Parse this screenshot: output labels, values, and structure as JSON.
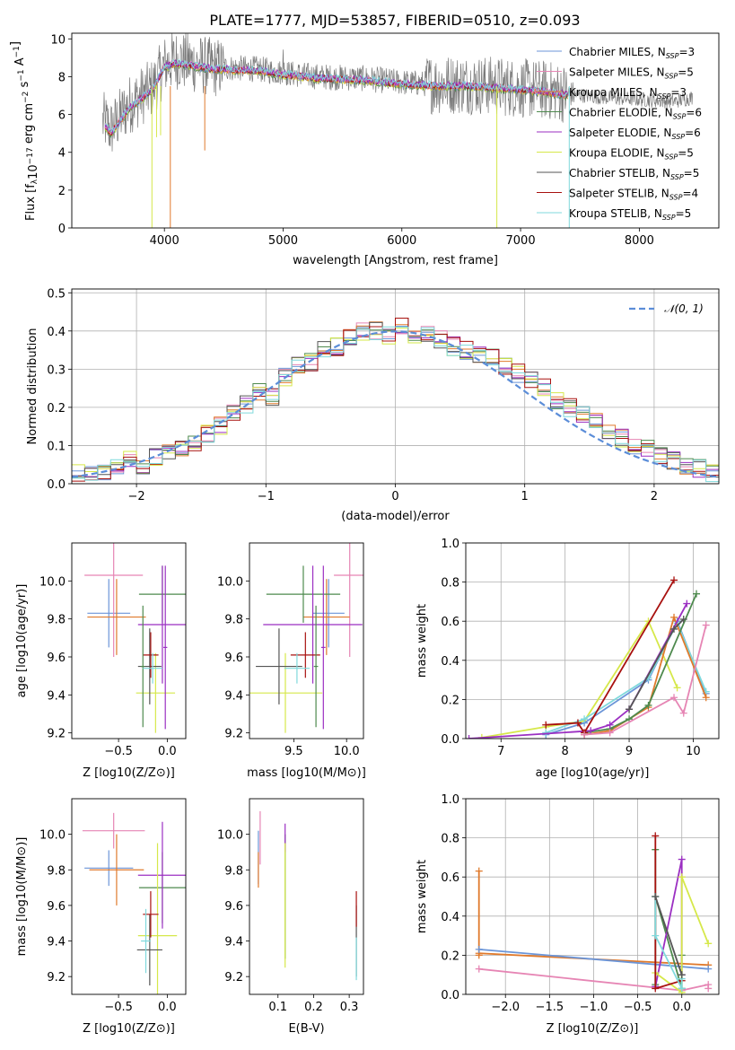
{
  "title": "PLATE=1777, MJD=53857, FIBERID=0510, z=0.093",
  "series": [
    {
      "name": "Chabrier MILES, N_SSP=3",
      "color": "#6b95d8",
      "lib": "MILES",
      "imf": "Chabrier",
      "nssp": "3"
    },
    {
      "name": "Salpeter MILES, N_SSP=5",
      "color": "#e685b4",
      "lib": "MILES",
      "imf": "Salpeter",
      "nssp": "5"
    },
    {
      "name": "Kroupa MILES, N_SSP=3",
      "color": "#e07a2c",
      "lib": "MILES",
      "imf": "Kroupa",
      "nssp": "3"
    },
    {
      "name": "Chabrier ELODIE, N_SSP=6",
      "color": "#4e8a4e",
      "lib": "ELODIE",
      "imf": "Chabrier",
      "nssp": "6"
    },
    {
      "name": "Salpeter ELODIE, N_SSP=6",
      "color": "#9b2fc2",
      "lib": "ELODIE",
      "imf": "Salpeter",
      "nssp": "6"
    },
    {
      "name": "Kroupa ELODIE, N_SSP=5",
      "color": "#d6e84a",
      "lib": "ELODIE",
      "imf": "Kroupa",
      "nssp": "5"
    },
    {
      "name": "Chabrier STELIB, N_SSP=5",
      "color": "#555555",
      "lib": "STELIB",
      "imf": "Chabrier",
      "nssp": "5"
    },
    {
      "name": "Salpeter STELIB, N_SSP=4",
      "color": "#a8110f",
      "lib": "STELIB",
      "imf": "Salpeter",
      "nssp": "4"
    },
    {
      "name": "Kroupa STELIB, N_SSP=5",
      "color": "#7fd9dc",
      "lib": "STELIB",
      "imf": "Kroupa",
      "nssp": "5"
    }
  ],
  "chart_data": [
    {
      "id": "spectrum",
      "type": "line",
      "title": "PLATE=1777, MJD=53857, FIBERID=0510, z=0.093",
      "xlabel": "wavelength [Angstrom, rest frame]",
      "ylabel": "Flux [f_λ 10^-17 erg cm^-2 s^-1 A^-1]",
      "xlim": [
        3220,
        8670
      ],
      "ylim": [
        0,
        10.3
      ],
      "xticks": [
        4000,
        5000,
        6000,
        7000,
        8000
      ],
      "yticks": [
        0,
        2,
        4,
        6,
        8,
        10
      ],
      "data_continuum": {
        "x": [
          3500,
          3550,
          3700,
          3900,
          4000,
          4100,
          4400,
          4800,
          5000,
          5300,
          5700,
          6000,
          6300,
          6560,
          6800,
          7200,
          7400,
          7700,
          8000,
          8300,
          8450
        ],
        "y": [
          5.6,
          5.2,
          6.5,
          7.4,
          8.6,
          8.9,
          8.5,
          8.4,
          8.2,
          8.0,
          7.9,
          7.7,
          7.6,
          7.6,
          7.5,
          7.3,
          7.1,
          6.9,
          6.8,
          6.7,
          6.9
        ]
      },
      "model_continuum": {
        "x": [
          3500,
          3550,
          3700,
          3900,
          4000,
          4100,
          4400,
          4800,
          5000,
          5300,
          5700,
          6000,
          6300,
          6560,
          6800,
          7200,
          7400
        ],
        "y": [
          5.4,
          5.0,
          6.3,
          7.3,
          8.5,
          8.7,
          8.4,
          8.3,
          8.1,
          7.9,
          7.8,
          7.6,
          7.5,
          7.5,
          7.4,
          7.2,
          7.0
        ]
      },
      "legend_position": "right"
    },
    {
      "id": "residuals",
      "type": "line",
      "xlabel": "(data-model)/error",
      "ylabel": "Normed distribution",
      "xlim": [
        -2.5,
        2.5
      ],
      "ylim": [
        0,
        0.51
      ],
      "xticks": [
        -2,
        -1,
        0,
        1,
        2
      ],
      "yticks": [
        0.0,
        0.1,
        0.2,
        0.3,
        0.4,
        0.5
      ],
      "grid": true,
      "gaussian_label": "𝒩(0, 1)",
      "legend_position": "top-right",
      "hist_edges": [
        -2.5,
        -2.4,
        -2.3,
        -2.2,
        -2.1,
        -2.0,
        -1.9,
        -1.8,
        -1.7,
        -1.6,
        -1.5,
        -1.4,
        -1.3,
        -1.2,
        -1.1,
        -1.0,
        -0.9,
        -0.8,
        -0.7,
        -0.6,
        -0.5,
        -0.4,
        -0.3,
        -0.2,
        -0.1,
        0.0,
        0.1,
        0.2,
        0.3,
        0.4,
        0.5,
        0.6,
        0.7,
        0.8,
        0.9,
        1.0,
        1.1,
        1.2,
        1.3,
        1.4,
        1.5,
        1.6,
        1.7,
        1.8,
        1.9,
        2.0,
        2.1,
        2.2,
        2.3,
        2.4,
        2.5
      ],
      "hist_base": [
        0.03,
        0.02,
        0.03,
        0.04,
        0.06,
        0.05,
        0.07,
        0.08,
        0.09,
        0.11,
        0.13,
        0.15,
        0.19,
        0.21,
        0.24,
        0.23,
        0.28,
        0.31,
        0.32,
        0.35,
        0.36,
        0.38,
        0.4,
        0.4,
        0.39,
        0.41,
        0.38,
        0.39,
        0.38,
        0.36,
        0.35,
        0.34,
        0.33,
        0.31,
        0.29,
        0.27,
        0.25,
        0.22,
        0.2,
        0.18,
        0.16,
        0.14,
        0.12,
        0.1,
        0.09,
        0.07,
        0.06,
        0.05,
        0.04,
        0.03
      ]
    },
    {
      "id": "age-vs-Z",
      "type": "scatter",
      "xlabel": "Z [log10(Z/Z⊙)]",
      "ylabel": "age  [log10(age/yr)]",
      "xlim": [
        -0.98,
        0.19
      ],
      "ylim": [
        9.17,
        10.2
      ],
      "xticks": [
        -0.5,
        0.0
      ],
      "yticks": [
        9.2,
        9.4,
        9.6,
        9.8,
        10.0
      ],
      "points": [
        {
          "s": 0,
          "x": -0.6,
          "y": 9.83,
          "xe": 0.22,
          "ye": 0.18
        },
        {
          "s": 1,
          "x": -0.55,
          "y": 10.03,
          "xe": 0.3,
          "ye": 0.43
        },
        {
          "s": 2,
          "x": -0.52,
          "y": 9.81,
          "xe": 0.3,
          "ye": 0.2
        },
        {
          "s": 3,
          "x": -0.05,
          "y": 9.93,
          "xe": 0.24,
          "ye": 0.15
        },
        {
          "s": 4,
          "x": -0.05,
          "y": 9.77,
          "xe": 0.25,
          "ye": 0.31
        },
        {
          "s": 5,
          "x": -0.12,
          "y": 9.41,
          "xe": 0.2,
          "ye": 0.21
        },
        {
          "s": 6,
          "x": -0.18,
          "y": 9.55,
          "xe": 0.12,
          "ye": 0.2
        },
        {
          "s": 7,
          "x": -0.17,
          "y": 9.61,
          "xe": 0.08,
          "ye": 0.12
        },
        {
          "s": 3,
          "x": -0.25,
          "y": 9.55,
          "xe": 0.02,
          "ye": 0.32
        },
        {
          "s": 4,
          "x": -0.02,
          "y": 9.65,
          "xe": 0.02,
          "ye": 0.43
        },
        {
          "s": 8,
          "x": -0.15,
          "y": 9.54,
          "xe": 0.1,
          "ye": 0.08
        }
      ]
    },
    {
      "id": "age-vs-mass",
      "type": "scatter",
      "xlabel": "mass [log10(M/M⊙)]",
      "ylabel": "",
      "xlim": [
        9.08,
        10.16
      ],
      "ylim": [
        9.17,
        10.2
      ],
      "xticks": [
        9.5,
        10.0
      ],
      "yticks": [
        9.2,
        9.4,
        9.6,
        9.8,
        10.0
      ],
      "points": [
        {
          "s": 0,
          "x": 9.83,
          "y": 9.83,
          "xe": 0.15,
          "ye": 0.18
        },
        {
          "s": 1,
          "x": 10.03,
          "y": 10.03,
          "xe": 0.15,
          "ye": 0.43
        },
        {
          "s": 2,
          "x": 9.81,
          "y": 9.81,
          "xe": 0.22,
          "ye": 0.2
        },
        {
          "s": 3,
          "x": 9.59,
          "y": 9.93,
          "xe": 0.35,
          "ye": 0.15
        },
        {
          "s": 4,
          "x": 9.68,
          "y": 9.77,
          "xe": 0.47,
          "ye": 0.31
        },
        {
          "s": 5,
          "x": 9.42,
          "y": 9.41,
          "xe": 0.35,
          "ye": 0.21
        },
        {
          "s": 6,
          "x": 9.36,
          "y": 9.55,
          "xe": 0.22,
          "ye": 0.2
        },
        {
          "s": 7,
          "x": 9.61,
          "y": 9.61,
          "xe": 0.14,
          "ye": 0.12
        },
        {
          "s": 3,
          "x": 9.71,
          "y": 9.55,
          "xe": 0.02,
          "ye": 0.32
        },
        {
          "s": 4,
          "x": 9.78,
          "y": 9.65,
          "xe": 0.02,
          "ye": 0.43
        },
        {
          "s": 8,
          "x": 9.53,
          "y": 9.54,
          "xe": 0.12,
          "ye": 0.08
        }
      ]
    },
    {
      "id": "massweight-vs-age",
      "type": "line",
      "xlabel": "age  [log10(age/yr)]",
      "ylabel": "mass weight",
      "xlim": [
        6.45,
        10.4
      ],
      "ylim": [
        0,
        1.0
      ],
      "xticks": [
        7,
        8,
        9,
        10
      ],
      "yticks": [
        0.0,
        0.2,
        0.4,
        0.6,
        0.8,
        1.0
      ],
      "grid": true,
      "lines": [
        {
          "s": 5,
          "x": [
            6.7,
            7.7,
            8.3,
            9.3,
            9.75
          ],
          "y": [
            0.005,
            0.06,
            0.09,
            0.6,
            0.26
          ]
        },
        {
          "s": 0,
          "x": [
            7.7,
            8.3,
            9.3,
            9.75,
            10.2
          ],
          "y": [
            0.02,
            0.08,
            0.3,
            0.6,
            0.23
          ]
        },
        {
          "s": 8,
          "x": [
            7.7,
            8.3,
            9.3,
            9.75,
            10.2
          ],
          "y": [
            0.03,
            0.1,
            0.31,
            0.59,
            0.24
          ]
        },
        {
          "s": 2,
          "x": [
            8.3,
            8.7,
            9.3,
            9.7,
            10.2
          ],
          "y": [
            0.02,
            0.04,
            0.16,
            0.62,
            0.21
          ]
        },
        {
          "s": 3,
          "x": [
            8.3,
            8.7,
            9.0,
            9.3,
            10.05
          ],
          "y": [
            0.03,
            0.05,
            0.1,
            0.17,
            0.74
          ]
        },
        {
          "s": 4,
          "x": [
            6.5,
            8.4,
            8.7,
            9.0,
            9.9
          ],
          "y": [
            0.0,
            0.04,
            0.07,
            0.15,
            0.69
          ]
        },
        {
          "s": 7,
          "x": [
            7.7,
            8.2,
            8.3,
            9.7
          ],
          "y": [
            0.07,
            0.08,
            0.03,
            0.81
          ]
        },
        {
          "s": 1,
          "x": [
            8.3,
            8.7,
            9.7,
            9.85,
            10.2
          ],
          "y": [
            0.02,
            0.03,
            0.21,
            0.13,
            0.58
          ]
        },
        {
          "s": 6,
          "x": [
            9.0,
            9.7,
            9.85
          ],
          "y": [
            0.15,
            0.56,
            0.61
          ]
        }
      ]
    },
    {
      "id": "mass-vs-Z",
      "type": "scatter",
      "xlabel": "Z [log10(Z/Z⊙)]",
      "ylabel": "mass [log10(M/M⊙)]",
      "xlim": [
        -0.98,
        0.19
      ],
      "ylim": [
        9.1,
        10.2
      ],
      "xticks": [
        -0.5,
        0.0
      ],
      "yticks": [
        9.2,
        9.4,
        9.6,
        9.8,
        10.0
      ],
      "points": [
        {
          "s": 0,
          "x": -0.6,
          "y": 9.81,
          "xe": 0.25,
          "ye": 0.1
        },
        {
          "s": 1,
          "x": -0.55,
          "y": 10.02,
          "xe": 0.32,
          "ye": 0.1
        },
        {
          "s": 2,
          "x": -0.52,
          "y": 9.8,
          "xe": 0.28,
          "ye": 0.2
        },
        {
          "s": 3,
          "x": -0.05,
          "y": 9.7,
          "xe": 0.24,
          "ye": 0.2
        },
        {
          "s": 4,
          "x": -0.05,
          "y": 9.77,
          "xe": 0.25,
          "ye": 0.3
        },
        {
          "s": 5,
          "x": -0.1,
          "y": 9.43,
          "xe": 0.2,
          "ye": 0.52
        },
        {
          "s": 6,
          "x": -0.18,
          "y": 9.35,
          "xe": 0.13,
          "ye": 0.2
        },
        {
          "s": 7,
          "x": -0.17,
          "y": 9.55,
          "xe": 0.08,
          "ye": 0.13
        },
        {
          "s": 8,
          "x": -0.22,
          "y": 9.4,
          "xe": 0.05,
          "ye": 0.18
        }
      ]
    },
    {
      "id": "mass-vs-EBV",
      "type": "scatter",
      "xlabel": "E(B-V)",
      "ylabel": "",
      "xlim": [
        0.02,
        0.34
      ],
      "ylim": [
        9.1,
        10.2
      ],
      "xticks": [
        0.1,
        0.2,
        0.3
      ],
      "yticks": [
        9.2,
        9.4,
        9.6,
        9.8,
        10.0
      ],
      "points": [
        {
          "s": 0,
          "x": 0.045,
          "y": 9.87,
          "xe": 0.0,
          "ye": 0.15
        },
        {
          "s": 1,
          "x": 0.05,
          "y": 9.98,
          "xe": 0.0,
          "ye": 0.15
        },
        {
          "s": 2,
          "x": 0.045,
          "y": 9.8,
          "xe": 0.0,
          "ye": 0.1
        },
        {
          "s": 3,
          "x": 0.12,
          "y": 9.65,
          "xe": 0.0,
          "ye": 0.35
        },
        {
          "s": 4,
          "x": 0.12,
          "y": 9.98,
          "xe": 0.0,
          "ye": 0.08
        },
        {
          "s": 5,
          "x": 0.12,
          "y": 9.6,
          "xe": 0.0,
          "ye": 0.35
        },
        {
          "s": 6,
          "x": 0.32,
          "y": 9.4,
          "xe": 0.0,
          "ye": 0.2
        },
        {
          "s": 7,
          "x": 0.32,
          "y": 9.58,
          "xe": 0.0,
          "ye": 0.1
        },
        {
          "s": 8,
          "x": 0.32,
          "y": 9.3,
          "xe": 0.0,
          "ye": 0.12
        }
      ]
    },
    {
      "id": "massweight-vs-Z",
      "type": "line",
      "xlabel": "Z [log10(Z/Z⊙)]",
      "ylabel": "mass weight",
      "xlim": [
        -2.45,
        0.42
      ],
      "ylim": [
        0,
        1.0
      ],
      "xticks": [
        -2.0,
        -1.5,
        -1.0,
        -0.5,
        0.0
      ],
      "yticks": [
        0.0,
        0.2,
        0.4,
        0.6,
        0.8,
        1.0
      ],
      "grid": true,
      "lines": [
        {
          "s": 2,
          "x": [
            -2.3,
            -2.3,
            -2.3,
            0.3
          ],
          "y": [
            0.63,
            0.2,
            0.21,
            0.15
          ]
        },
        {
          "s": 0,
          "x": [
            -2.3,
            0.3
          ],
          "y": [
            0.23,
            0.13
          ]
        },
        {
          "s": 1,
          "x": [
            -2.3,
            0.0,
            0.3,
            0.3
          ],
          "y": [
            0.13,
            0.02,
            0.05,
            0.03
          ]
        },
        {
          "s": 3,
          "x": [
            -0.3,
            -0.3,
            -0.3,
            0.0,
            0.0
          ],
          "y": [
            0.05,
            0.74,
            0.5,
            0.03,
            0.2
          ]
        },
        {
          "s": 4,
          "x": [
            -0.3,
            0.0,
            0.0
          ],
          "y": [
            0.04,
            0.69,
            0.1
          ]
        },
        {
          "s": 5,
          "x": [
            -0.3,
            0.0,
            0.0,
            0.3
          ],
          "y": [
            0.11,
            0.01,
            0.6,
            0.26
          ]
        },
        {
          "s": 7,
          "x": [
            -0.3,
            -0.3,
            0.0
          ],
          "y": [
            0.81,
            0.03,
            0.07
          ]
        },
        {
          "s": 8,
          "x": [
            -0.3,
            -0.3,
            0.0,
            0.0
          ],
          "y": [
            0.5,
            0.3,
            0.03,
            0.08
          ]
        },
        {
          "s": 6,
          "x": [
            -0.3,
            0.0
          ],
          "y": [
            0.5,
            0.1
          ]
        }
      ]
    }
  ]
}
